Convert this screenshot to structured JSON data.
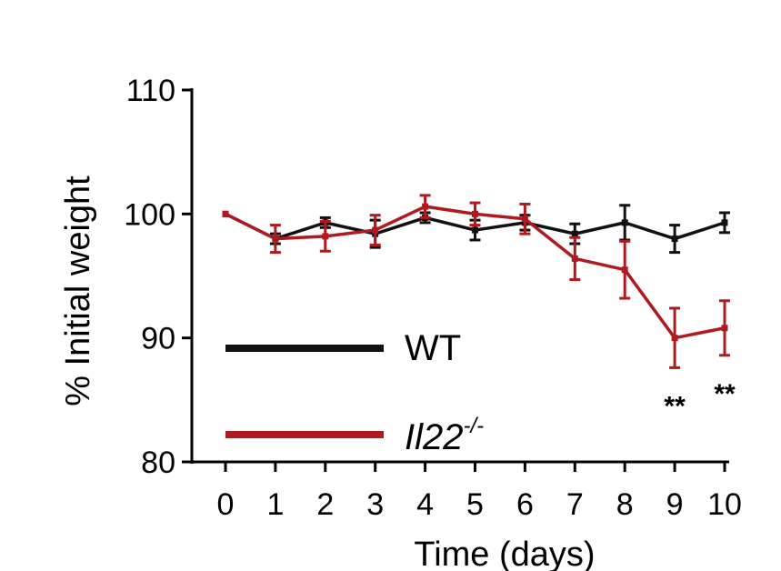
{
  "chart_data": {
    "type": "line",
    "title": "",
    "xlabel": "Time (days)",
    "ylabel": "% Initial weight",
    "xlim": [
      0,
      10
    ],
    "ylim": [
      80,
      110
    ],
    "x": [
      0,
      1,
      2,
      3,
      4,
      5,
      6,
      7,
      8,
      9,
      10
    ],
    "yticks": [
      80,
      90,
      100,
      110
    ],
    "series": [
      {
        "name": "WT",
        "color": "#111111",
        "values": [
          100,
          98.0,
          99.3,
          98.4,
          99.7,
          98.7,
          99.3,
          98.4,
          99.3,
          98.0,
          99.3
        ],
        "errors": [
          0,
          0.4,
          0.4,
          1.1,
          0.4,
          0.8,
          0.6,
          0.8,
          1.4,
          1.1,
          0.8
        ]
      },
      {
        "name": "Il22",
        "superscript": "-/-",
        "color": "#B0191E",
        "values": [
          100,
          98.0,
          98.2,
          98.7,
          100.6,
          100.0,
          99.6,
          96.4,
          95.5,
          90.0,
          90.8
        ],
        "errors": [
          0,
          1.1,
          1.2,
          1.2,
          0.9,
          0.9,
          1.2,
          1.7,
          2.3,
          2.4,
          2.2
        ]
      }
    ],
    "annotations": [
      {
        "text": "**",
        "x": 9
      },
      {
        "text": "**",
        "x": 10
      }
    ],
    "legend_position": "bottom-left",
    "grid": false
  }
}
